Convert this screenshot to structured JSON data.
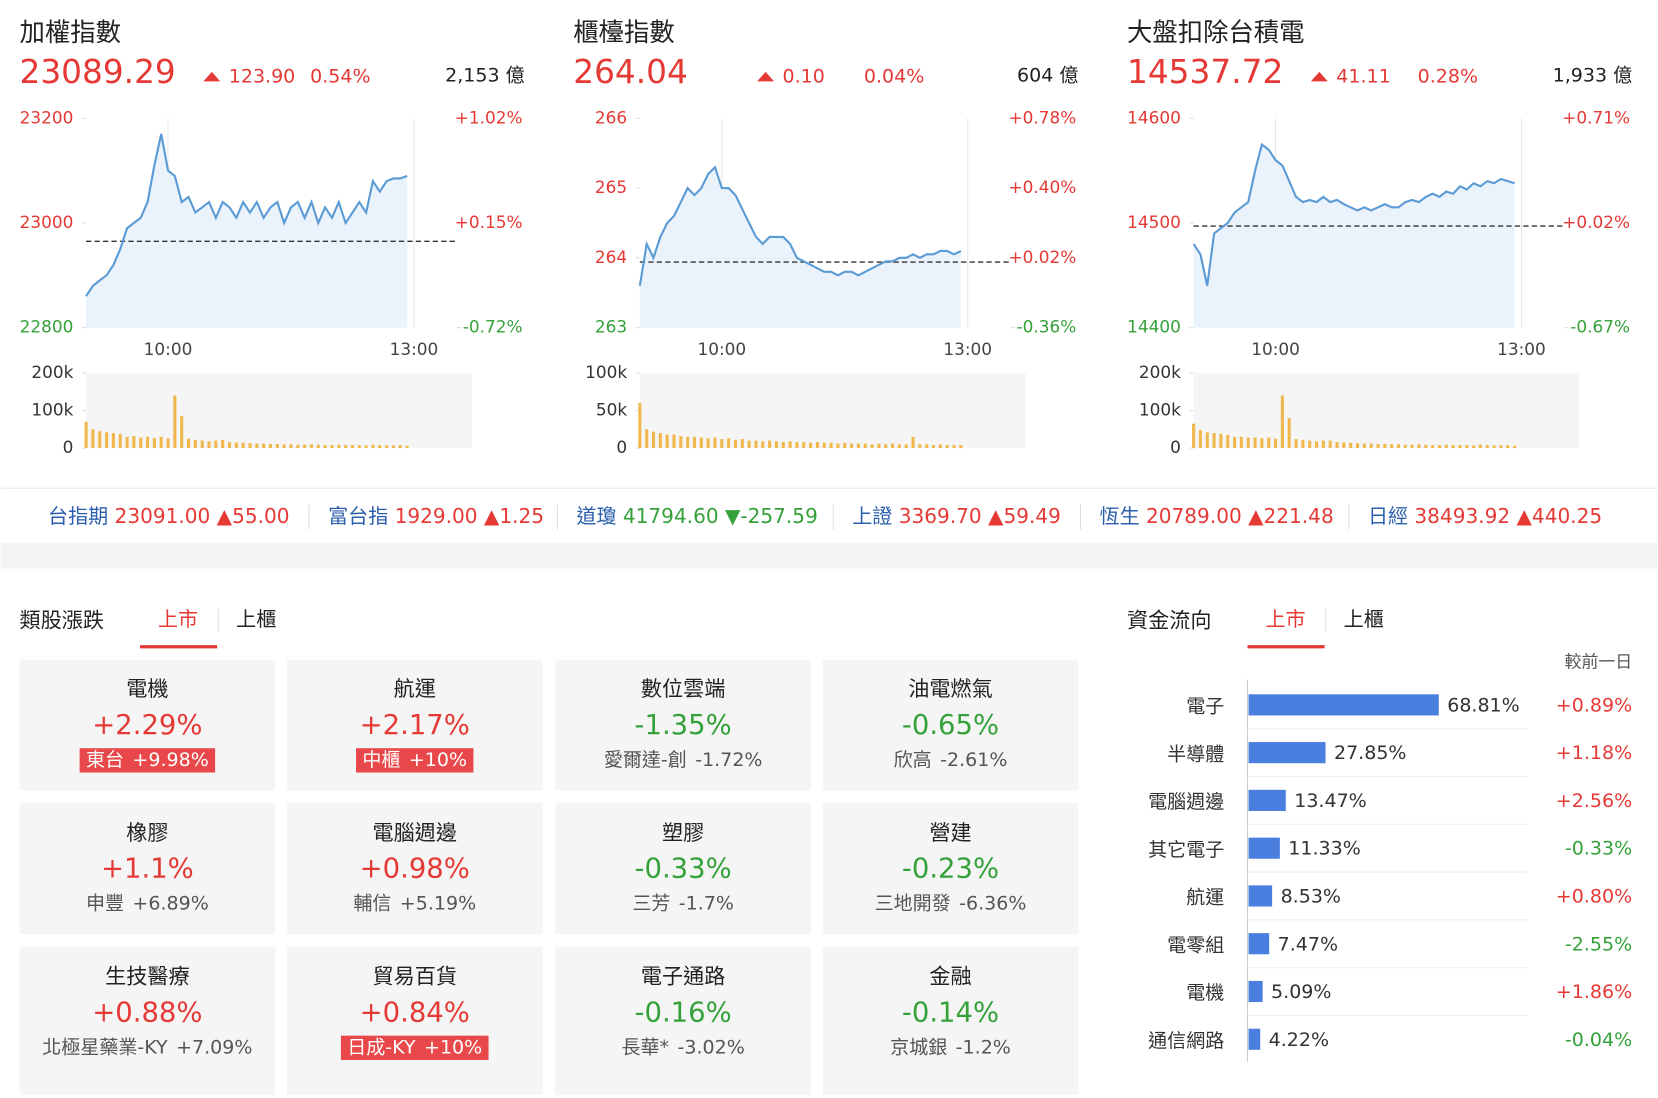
{
  "colors": {
    "up": "#e53935",
    "down": "#35a13a",
    "line": "#5b9bd5",
    "area": "#eaf2fb",
    "volume": "#f0b84c",
    "name": "#2b5fad",
    "bar": "#4a7fe0",
    "badge": "#e8484a"
  },
  "times": [
    "09:00",
    "09:05",
    "09:10",
    "09:15",
    "09:20",
    "09:25",
    "09:30",
    "09:35",
    "09:40",
    "09:45",
    "09:50",
    "09:55",
    "10:00",
    "10:05",
    "10:10",
    "10:15",
    "10:20",
    "10:25",
    "10:30",
    "10:35",
    "10:40",
    "10:45",
    "10:50",
    "10:55",
    "11:00",
    "11:05",
    "11:10",
    "11:15",
    "11:20",
    "11:25",
    "11:30",
    "11:35",
    "11:40",
    "11:45",
    "11:50",
    "11:55",
    "12:00",
    "12:05",
    "12:10",
    "12:15",
    "12:20",
    "12:25",
    "12:30",
    "12:35",
    "12:40",
    "12:45",
    "12:50",
    "12:55"
  ],
  "indices": [
    {
      "name": "加權指數",
      "price": 23089.29,
      "change": "123.90",
      "change_pct": "0.54%",
      "volume": "2,153 億",
      "chart": {
        "type": "line",
        "xlim": [
          "09:00",
          "13:30"
        ],
        "xticks": [
          "10:00",
          "13:00"
        ],
        "ylim": [
          22800,
          23200
        ],
        "yticks": [
          22800,
          23000,
          23200
        ],
        "prev_close": 22965,
        "y2lim": [
          -0.72,
          1.02
        ],
        "y2ticks": [
          {
            "value": -0.72,
            "label": "-0.72%"
          },
          {
            "value": 0.15,
            "label": "+0.15%"
          },
          {
            "value": 1.02,
            "label": "+1.02%"
          }
        ],
        "values": [
          22860,
          22880,
          22890,
          22900,
          22920,
          22950,
          22990,
          23000,
          23010,
          23040,
          23110,
          23170,
          23100,
          23090,
          23040,
          23050,
          23020,
          23030,
          23040,
          23010,
          23040,
          23030,
          23010,
          23040,
          23020,
          23040,
          23010,
          23030,
          23040,
          23000,
          23030,
          23040,
          23010,
          23040,
          23000,
          23030,
          23010,
          23040,
          23000,
          23020,
          23040,
          23020,
          23080,
          23060,
          23080,
          23085,
          23085,
          23090
        ],
        "volume": {
          "ylim": [
            0,
            200000
          ],
          "yticks": [
            0,
            {
              "value": 100000,
              "label": "100k"
            },
            {
              "value": 200000,
              "label": "200k"
            }
          ],
          "values": [
            70000,
            50000,
            45000,
            42000,
            40000,
            38000,
            30000,
            32000,
            28000,
            30000,
            27000,
            30000,
            26000,
            140000,
            85000,
            25000,
            22000,
            20000,
            18000,
            20000,
            22000,
            16000,
            15000,
            14000,
            13000,
            12000,
            12000,
            11000,
            11000,
            10000,
            10000,
            9000,
            9000,
            10000,
            9000,
            8000,
            8000,
            9000,
            8000,
            8000,
            8000,
            7000,
            9000,
            8000,
            7000,
            7000,
            8000,
            6000
          ]
        }
      }
    },
    {
      "name": "櫃檯指數",
      "price": 264.04,
      "change": "0.10",
      "change_pct": "0.04%",
      "volume": "604 億",
      "chart": {
        "type": "line",
        "xlim": [
          "09:00",
          "13:30"
        ],
        "xticks": [
          "10:00",
          "13:00"
        ],
        "ylim": [
          263,
          266
        ],
        "yticks": [
          263,
          264,
          265,
          266
        ],
        "prev_close": 263.94,
        "y2lim": [
          -0.36,
          0.78
        ],
        "y2ticks": [
          {
            "value": -0.36,
            "label": "-0.36%"
          },
          {
            "value": 0.02,
            "label": "+0.02%"
          },
          {
            "value": 0.4,
            "label": "+0.40%"
          },
          {
            "value": 0.78,
            "label": "+0.78%"
          }
        ],
        "values": [
          263.6,
          264.2,
          264.0,
          264.3,
          264.5,
          264.6,
          264.8,
          265.0,
          264.9,
          265.0,
          265.2,
          265.3,
          265.0,
          265.0,
          264.9,
          264.7,
          264.5,
          264.3,
          264.2,
          264.3,
          264.3,
          264.3,
          264.2,
          264.0,
          263.95,
          263.9,
          263.85,
          263.8,
          263.8,
          263.75,
          263.8,
          263.8,
          263.75,
          263.8,
          263.85,
          263.9,
          263.95,
          263.95,
          264.0,
          264.0,
          264.05,
          264.0,
          264.05,
          264.05,
          264.1,
          264.1,
          264.05,
          264.1
        ],
        "volume": {
          "ylim": [
            0,
            100000
          ],
          "yticks": [
            0,
            {
              "value": 50000,
              "label": "50k"
            },
            {
              "value": 100000,
              "label": "100k"
            }
          ],
          "values": [
            60000,
            25000,
            22000,
            20000,
            18000,
            18000,
            16000,
            15000,
            15000,
            14000,
            13000,
            14000,
            12000,
            13000,
            11000,
            12000,
            10000,
            10000,
            9000,
            10000,
            9000,
            8000,
            9000,
            8000,
            8000,
            7000,
            8000,
            7000,
            7000,
            6000,
            7000,
            6000,
            6000,
            6000,
            5000,
            6000,
            5000,
            6000,
            5000,
            5000,
            15000,
            5000,
            5000,
            4000,
            5000,
            4000,
            4000,
            4000
          ]
        }
      }
    },
    {
      "name": "大盤扣除台積電",
      "price": 14537.72,
      "change": "41.11",
      "change_pct": "0.28%",
      "volume": "1,933 億",
      "chart": {
        "type": "line",
        "xlim": [
          "09:00",
          "13:30"
        ],
        "xticks": [
          "10:00",
          "13:00"
        ],
        "ylim": [
          14400,
          14600
        ],
        "yticks": [
          14400,
          14500,
          14600
        ],
        "prev_close": 14497,
        "y2lim": [
          -0.67,
          0.71
        ],
        "y2ticks": [
          {
            "value": -0.67,
            "label": "-0.67%"
          },
          {
            "value": 0.02,
            "label": "+0.02%"
          },
          {
            "value": 0.71,
            "label": "+0.71%"
          }
        ],
        "values": [
          14480,
          14470,
          14440,
          14490,
          14495,
          14500,
          14510,
          14515,
          14520,
          14550,
          14575,
          14570,
          14560,
          14555,
          14540,
          14525,
          14520,
          14522,
          14520,
          14525,
          14520,
          14522,
          14518,
          14515,
          14512,
          14515,
          14512,
          14515,
          14518,
          14515,
          14515,
          14520,
          14522,
          14520,
          14525,
          14528,
          14525,
          14530,
          14528,
          14535,
          14532,
          14538,
          14535,
          14540,
          14538,
          14542,
          14540,
          14538
        ],
        "volume": {
          "ylim": [
            0,
            200000
          ],
          "yticks": [
            0,
            {
              "value": 100000,
              "label": "100k"
            },
            {
              "value": 200000,
              "label": "200k"
            }
          ],
          "values": [
            65000,
            48000,
            42000,
            40000,
            38000,
            35000,
            30000,
            30000,
            28000,
            28000,
            26000,
            28000,
            25000,
            140000,
            80000,
            24000,
            22000,
            20000,
            18000,
            20000,
            20000,
            16000,
            15000,
            14000,
            13000,
            12000,
            12000,
            11000,
            11000,
            10000,
            10000,
            9000,
            9000,
            10000,
            9000,
            8000,
            8000,
            9000,
            8000,
            8000,
            8000,
            7000,
            9000,
            8000,
            7000,
            7000,
            8000,
            6000
          ]
        }
      }
    }
  ],
  "ticker": [
    {
      "name": "台指期",
      "price": "23091.00",
      "change": "▲55.00"
    },
    {
      "name": "富台指",
      "price": "1929.00",
      "change": "▲1.25"
    },
    {
      "name": "道瓊",
      "price": "41794.60",
      "change": "▼-257.59"
    },
    {
      "name": "上證",
      "price": "3369.70",
      "change": "▲59.49"
    },
    {
      "name": "恆生",
      "price": "20789.00",
      "change": "▲221.48"
    },
    {
      "name": "日經",
      "price": "38493.92",
      "change": "▲440.25"
    }
  ],
  "sectors": {
    "title": "類股漲跌",
    "tabs": [
      "上市",
      "上櫃"
    ],
    "cards": [
      {
        "name": "電機",
        "change": "+2.29%",
        "stock": "東台",
        "stock_change": "+9.98%",
        "limit_up": true
      },
      {
        "name": "航運",
        "change": "+2.17%",
        "stock": "中櫃",
        "stock_change": "+10%",
        "limit_up": true
      },
      {
        "name": "數位雲端",
        "change": "-1.35%",
        "stock": "愛爾達-創",
        "stock_change": "-1.72%",
        "limit_up": false
      },
      {
        "name": "油電燃氣",
        "change": "-0.65%",
        "stock": "欣高",
        "stock_change": "-2.61%",
        "limit_up": false
      },
      {
        "name": "橡膠",
        "change": "+1.1%",
        "stock": "申豐",
        "stock_change": "+6.89%",
        "limit_up": false
      },
      {
        "name": "電腦週邊",
        "change": "+0.98%",
        "stock": "輔信",
        "stock_change": "+5.19%",
        "limit_up": false
      },
      {
        "name": "塑膠",
        "change": "-0.33%",
        "stock": "三芳",
        "stock_change": "-1.7%",
        "limit_up": false
      },
      {
        "name": "營建",
        "change": "-0.23%",
        "stock": "三地開發",
        "stock_change": "-6.36%",
        "limit_up": false
      },
      {
        "name": "生技醫療",
        "change": "+0.88%",
        "stock": "北極星藥業-KY",
        "stock_change": "+7.09%",
        "limit_up": false
      },
      {
        "name": "貿易百貨",
        "change": "+0.84%",
        "stock": "日成-KY",
        "stock_change": "+10%",
        "limit_up": true
      },
      {
        "name": "電子通路",
        "change": "-0.16%",
        "stock": "長華*",
        "stock_change": "-3.02%",
        "limit_up": false
      },
      {
        "name": "金融",
        "change": "-0.14%",
        "stock": "京城銀",
        "stock_change": "-1.2%",
        "limit_up": false
      }
    ]
  },
  "fund_flow": {
    "title": "資金流向",
    "tabs": [
      "上市",
      "上櫃"
    ],
    "change_header": "較前一日",
    "categories": [
      "電子",
      "半導體",
      "電腦週邊",
      "其它電子",
      "航運",
      "電零組",
      "電機",
      "通信網路"
    ],
    "values": [
      68.81,
      27.85,
      13.47,
      11.33,
      8.53,
      7.47,
      5.09,
      4.22
    ],
    "value_labels": [
      "68.81%",
      "27.85%",
      "13.47%",
      "11.33%",
      "8.53%",
      "7.47%",
      "5.09%",
      "4.22%"
    ],
    "changes": [
      "+0.89%",
      "+1.18%",
      "+2.56%",
      "-0.33%",
      "+0.80%",
      "-2.55%",
      "+1.86%",
      "-0.04%"
    ]
  }
}
